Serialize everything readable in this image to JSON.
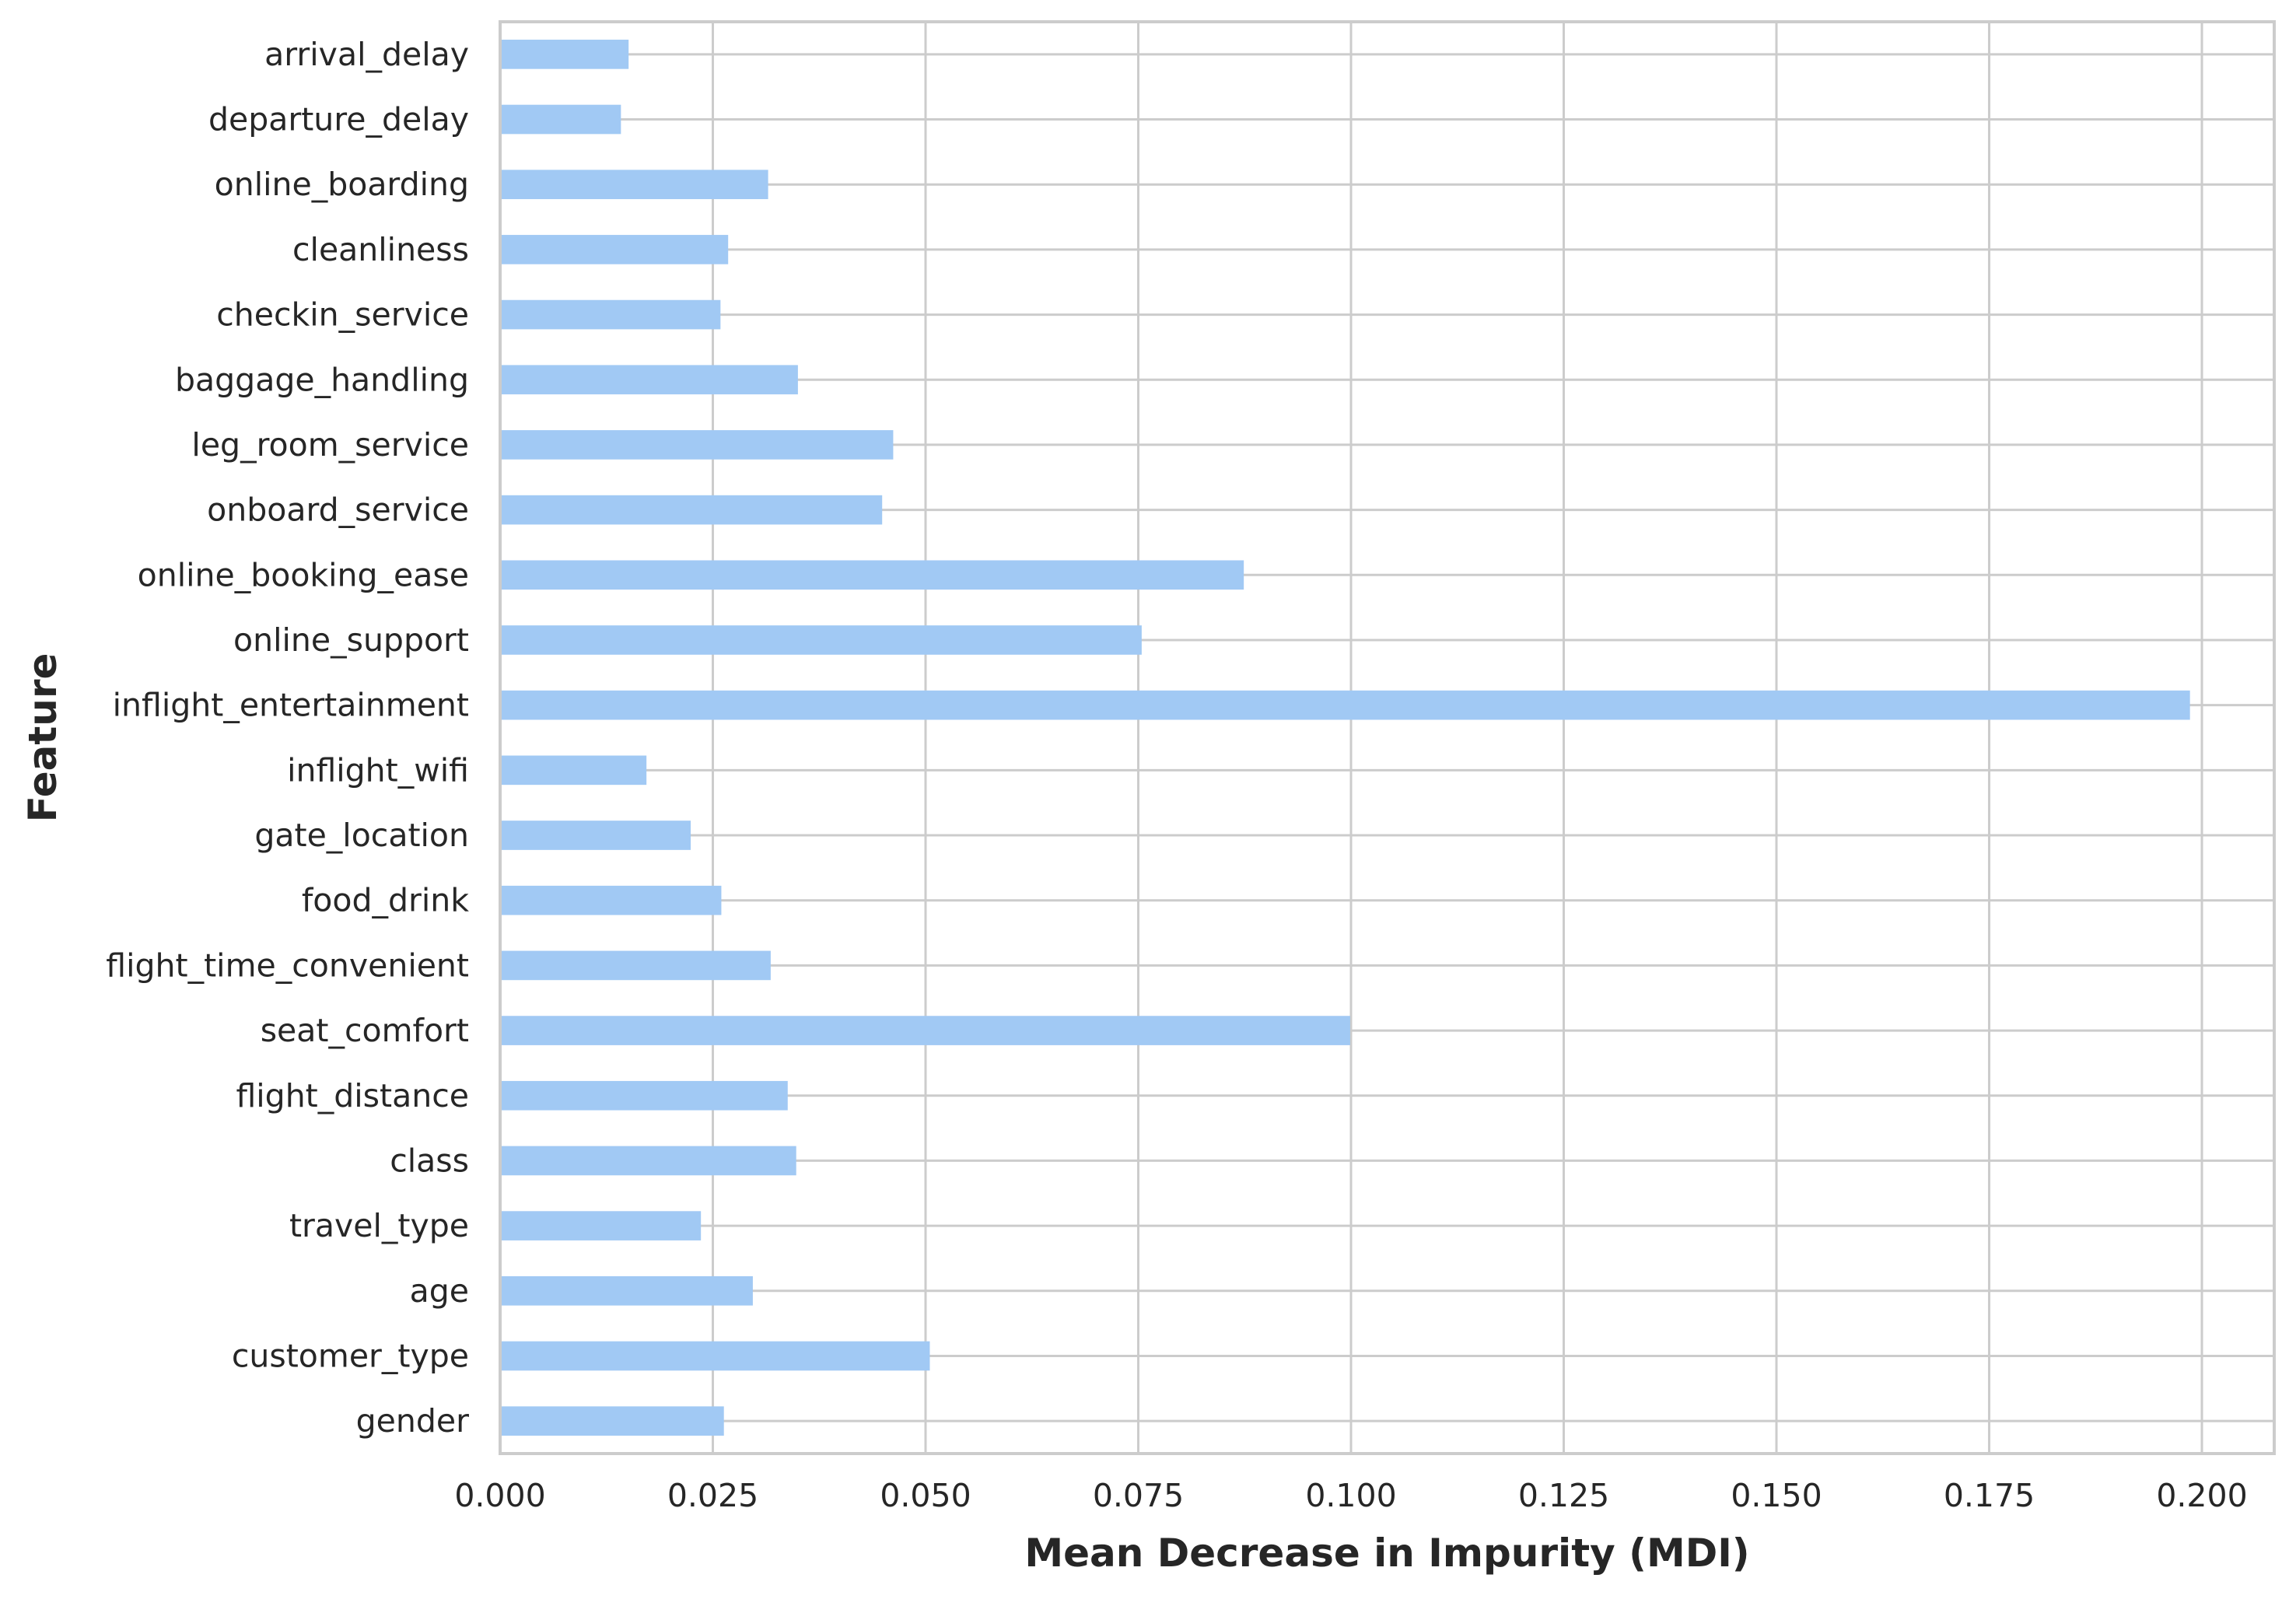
{
  "chart_data": {
    "type": "bar",
    "orientation": "horizontal",
    "title": "",
    "xlabel": "Mean Decrease in Impurity (MDI)",
    "ylabel": "Feature",
    "xlim": [
      0,
      0.2085
    ],
    "xticks": [
      0.0,
      0.025,
      0.05,
      0.075,
      0.1,
      0.125,
      0.15,
      0.175,
      0.2
    ],
    "xtick_labels": [
      "0.000",
      "0.025",
      "0.050",
      "0.075",
      "0.100",
      "0.125",
      "0.150",
      "0.175",
      "0.200"
    ],
    "grid": true,
    "legend": "none",
    "bar_color": "#a1c9f4",
    "categories": [
      "gender",
      "customer_type",
      "age",
      "travel_type",
      "class",
      "flight_distance",
      "seat_comfort",
      "flight_time_convenient",
      "food_drink",
      "gate_location",
      "inflight_wifi",
      "inflight_entertainment",
      "online_support",
      "online_booking_ease",
      "onboard_service",
      "leg_room_service",
      "baggage_handling",
      "checkin_service",
      "cleanliness",
      "online_boarding",
      "departure_delay",
      "arrival_delay"
    ],
    "values": [
      0.0263,
      0.0505,
      0.0297,
      0.0236,
      0.0348,
      0.0338,
      0.0999,
      0.0318,
      0.026,
      0.0224,
      0.0172,
      0.1986,
      0.0754,
      0.0874,
      0.0449,
      0.0462,
      0.035,
      0.0259,
      0.0268,
      0.0315,
      0.0142,
      0.0151
    ]
  }
}
